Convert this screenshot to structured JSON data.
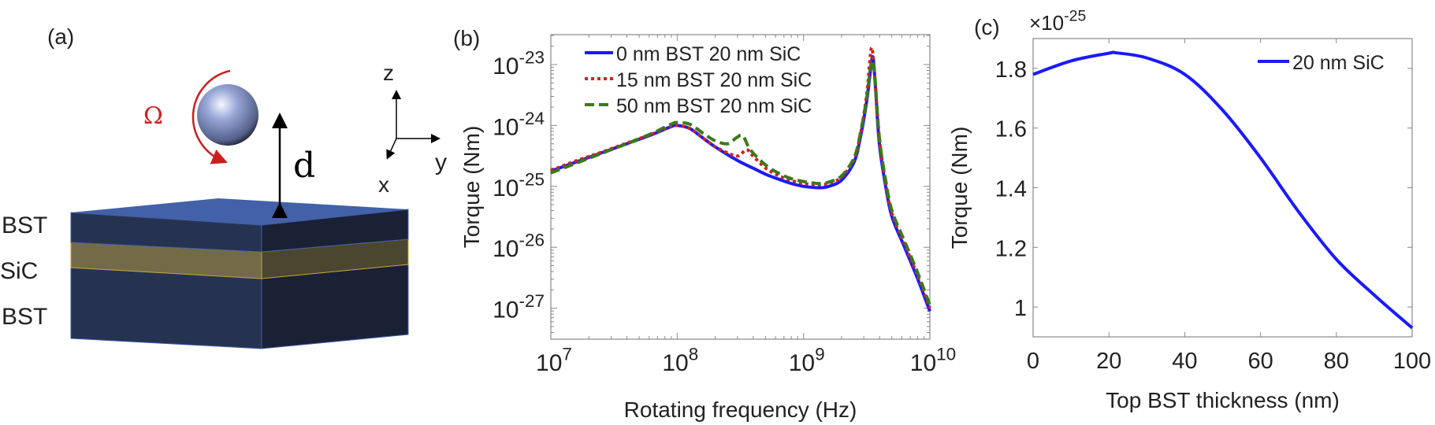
{
  "panel_a": {
    "label": "(a)",
    "omega_label": "Ω",
    "distance_label": "d",
    "axis_z": "z",
    "axis_y": "y",
    "axis_x": "x",
    "layers": [
      "BST",
      "SiC",
      "BST"
    ],
    "colors": {
      "bst_front": "#263350",
      "bst_side": "#1a2135",
      "top_face": "#4361a8",
      "sic_front": "#736b48",
      "sic_side": "#4b4630",
      "sphere": "#9aa8d8",
      "omega": "#cc1f1f"
    }
  },
  "chart_data": [
    {
      "type": "line",
      "panel_label": "(b)",
      "xlabel": "Rotating frequency (Hz)",
      "ylabel": "Torque (Nm)",
      "xscale": "log",
      "yscale": "log",
      "xlim": [
        10000000.0,
        10000000000.0
      ],
      "ylim": [
        3.1e-28,
        3.1e-23
      ],
      "xticks": [
        {
          "base": "10",
          "exp": "7",
          "value": 10000000.0
        },
        {
          "base": "10",
          "exp": "8",
          "value": 100000000.0
        },
        {
          "base": "10",
          "exp": "9",
          "value": 1000000000.0
        },
        {
          "base": "10",
          "exp": "10",
          "value": 10000000000.0
        }
      ],
      "yticks": [
        {
          "base": "10",
          "exp": "-27",
          "value": 1e-27
        },
        {
          "base": "10",
          "exp": "-26",
          "value": 1e-26
        },
        {
          "base": "10",
          "exp": "-25",
          "value": 1e-25
        },
        {
          "base": "10",
          "exp": "-24",
          "value": 1e-24
        },
        {
          "base": "10",
          "exp": "-23",
          "value": 1e-23
        }
      ],
      "legend_position": "top-left",
      "series": [
        {
          "name": "0 nm BST 20 nm SiC",
          "color": "#1a1aff",
          "style": "solid",
          "x_log10": [
            7.0,
            7.2,
            7.4,
            7.6,
            7.8,
            7.95,
            8.0,
            8.1,
            8.2,
            8.3,
            8.4,
            8.5,
            8.6,
            8.7,
            8.8,
            8.9,
            9.0,
            9.1,
            9.15,
            9.2,
            9.3,
            9.4,
            9.45,
            9.5,
            9.53,
            9.55,
            9.57,
            9.6,
            9.65,
            9.7,
            9.8,
            9.9,
            10.0
          ],
          "y_log10": [
            -24.75,
            -24.6,
            -24.45,
            -24.3,
            -24.15,
            -24.02,
            -24.0,
            -24.05,
            -24.2,
            -24.35,
            -24.48,
            -24.6,
            -24.7,
            -24.8,
            -24.88,
            -24.95,
            -25.0,
            -25.02,
            -25.02,
            -25.0,
            -24.9,
            -24.6,
            -24.2,
            -23.6,
            -23.1,
            -22.88,
            -23.4,
            -24.3,
            -25.0,
            -25.5,
            -26.0,
            -26.5,
            -27.05
          ]
        },
        {
          "name": "15 nm BST 20 nm SiC",
          "color": "#d42020",
          "style": "dotted",
          "x_log10": [
            7.0,
            7.2,
            7.4,
            7.6,
            7.8,
            7.95,
            8.0,
            8.1,
            8.2,
            8.3,
            8.4,
            8.48,
            8.55,
            8.6,
            8.7,
            8.8,
            8.9,
            9.0,
            9.1,
            9.15,
            9.2,
            9.3,
            9.4,
            9.45,
            9.5,
            9.52,
            9.54,
            9.56,
            9.6,
            9.65,
            9.7,
            9.8,
            9.9,
            10.0
          ],
          "y_log10": [
            -24.74,
            -24.58,
            -24.44,
            -24.29,
            -24.14,
            -24.02,
            -24.0,
            -24.05,
            -24.2,
            -24.35,
            -24.45,
            -24.5,
            -24.4,
            -24.5,
            -24.7,
            -24.82,
            -24.9,
            -24.95,
            -24.97,
            -24.97,
            -24.95,
            -24.85,
            -24.55,
            -24.15,
            -23.5,
            -23.05,
            -22.72,
            -23.1,
            -24.2,
            -24.95,
            -25.45,
            -25.95,
            -26.45,
            -27.0
          ]
        },
        {
          "name": "50 nm BST 20 nm SiC",
          "color": "#3a7a1a",
          "style": "dashed",
          "x_log10": [
            7.0,
            7.2,
            7.4,
            7.6,
            7.8,
            7.95,
            8.0,
            8.1,
            8.2,
            8.3,
            8.4,
            8.47,
            8.52,
            8.58,
            8.7,
            8.8,
            8.9,
            9.0,
            9.1,
            9.15,
            9.2,
            9.3,
            9.4,
            9.45,
            9.5,
            9.53,
            9.55,
            9.57,
            9.6,
            9.65,
            9.7,
            9.8,
            9.9,
            10.0
          ],
          "y_log10": [
            -24.78,
            -24.62,
            -24.46,
            -24.3,
            -24.13,
            -23.98,
            -23.95,
            -23.98,
            -24.12,
            -24.25,
            -24.3,
            -24.2,
            -24.17,
            -24.4,
            -24.65,
            -24.78,
            -24.87,
            -24.92,
            -24.95,
            -24.95,
            -24.93,
            -24.83,
            -24.53,
            -24.13,
            -23.55,
            -23.05,
            -22.95,
            -23.35,
            -24.2,
            -24.9,
            -25.4,
            -25.9,
            -26.4,
            -26.95
          ]
        }
      ]
    },
    {
      "type": "line",
      "panel_label": "(c)",
      "multiplier": {
        "base": "×10",
        "exp": "-25"
      },
      "xlabel": "Top BST thickness (nm)",
      "ylabel": "Torque (Nm)",
      "xlim": [
        0,
        100
      ],
      "ylim": [
        0.9,
        1.9
      ],
      "xticks": [
        "0",
        "20",
        "40",
        "60",
        "80",
        "100"
      ],
      "yticks": [
        "1",
        "1.2",
        "1.4",
        "1.6",
        "1.8"
      ],
      "legend_position": "top-right",
      "series": [
        {
          "name": "20 nm SiC",
          "color": "#1a1aff",
          "style": "solid",
          "x": [
            0,
            10,
            20,
            22,
            30,
            40,
            50,
            60,
            70,
            80,
            90,
            100
          ],
          "y": [
            1.78,
            1.825,
            1.851,
            1.852,
            1.835,
            1.78,
            1.66,
            1.5,
            1.32,
            1.16,
            1.04,
            0.93
          ]
        }
      ]
    }
  ]
}
